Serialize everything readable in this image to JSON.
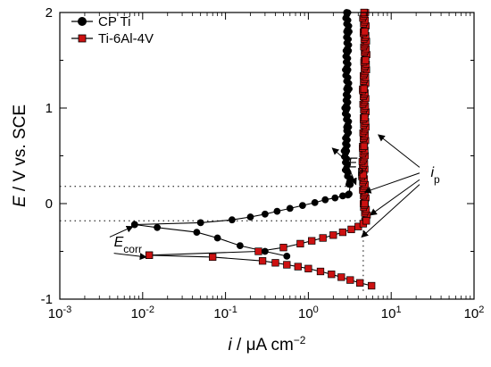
{
  "chart_data": {
    "type": "line",
    "xscale": "log",
    "xlim": [
      0.001,
      100
    ],
    "ylim": [
      -1,
      2
    ],
    "xlabel": {
      "main": "i",
      "rest": " / μA cm",
      "sup": "−2"
    },
    "ylabel": {
      "main": "E",
      "rest": " / V vs. SCE"
    },
    "x_ticks": [
      {
        "base": "10",
        "exp": "-3"
      },
      {
        "base": "10",
        "exp": "-2"
      },
      {
        "base": "10",
        "exp": "-1"
      },
      {
        "base": "10",
        "exp": "0"
      },
      {
        "base": "10",
        "exp": "1"
      },
      {
        "base": "10",
        "exp": "2"
      }
    ],
    "y_ticks": [
      "-1",
      "0",
      "1",
      "2"
    ],
    "legend_position": "top-left",
    "series": [
      {
        "name": "CP Ti",
        "marker": "circle",
        "color": "#000000",
        "fill": "#000000",
        "cathodic_x": [
          0.55,
          0.3,
          0.15,
          0.08,
          0.045,
          0.015,
          0.008
        ],
        "cathodic_y": [
          -0.55,
          -0.5,
          -0.44,
          -0.36,
          -0.3,
          -0.25,
          -0.22
        ],
        "anodic_x": [
          0.008,
          0.05,
          0.12,
          0.2,
          0.3,
          0.42,
          0.6,
          0.85,
          1.2,
          1.6,
          2.1,
          2.6,
          3.0,
          3.1,
          3.2,
          2.9,
          2.8,
          3.0,
          2.85,
          3.0,
          2.9,
          2.95,
          3.0,
          2.9
        ],
        "anodic_y": [
          -0.22,
          -0.2,
          -0.17,
          -0.14,
          -0.11,
          -0.08,
          -0.05,
          -0.02,
          0.01,
          0.04,
          0.06,
          0.08,
          0.09,
          0.1,
          0.2,
          0.35,
          0.55,
          0.8,
          1.0,
          1.2,
          1.4,
          1.6,
          1.8,
          2.0
        ]
      },
      {
        "name": "Ti-6Al-4V",
        "marker": "square",
        "color": "#000000",
        "fill": "#cc1111",
        "cathodic_x": [
          5.8,
          4.2,
          3.2,
          2.5,
          1.9,
          1.4,
          1.0,
          0.75,
          0.55,
          0.4,
          0.28,
          0.07,
          0.012
        ],
        "cathodic_y": [
          -0.86,
          -0.83,
          -0.8,
          -0.77,
          -0.74,
          -0.71,
          -0.68,
          -0.66,
          -0.64,
          -0.62,
          -0.6,
          -0.56,
          -0.54
        ],
        "anodic_x": [
          0.012,
          0.25,
          0.5,
          0.8,
          1.1,
          1.5,
          2.0,
          2.6,
          3.3,
          4.0,
          4.6,
          5.0,
          4.8,
          4.6,
          4.7,
          4.8,
          4.7,
          4.9,
          4.8,
          4.7
        ],
        "anodic_y": [
          -0.54,
          -0.5,
          -0.46,
          -0.42,
          -0.39,
          -0.36,
          -0.33,
          -0.3,
          -0.27,
          -0.24,
          -0.21,
          -0.18,
          0.0,
          0.3,
          0.6,
          0.9,
          1.2,
          1.5,
          1.8,
          2.0
        ]
      }
    ],
    "reference_lines": [
      {
        "y": 0.18,
        "x_end": 3.5
      },
      {
        "y": -0.18,
        "x_end": 4.6
      },
      {
        "x": 4.6,
        "y_from": -0.18,
        "y_to": -0.95
      }
    ],
    "annotations": [
      {
        "main": "E",
        "sub": "p",
        "text_at": [
          3.0,
          0.38
        ],
        "arrows": [
          {
            "from": [
              2.7,
              0.47
            ],
            "to": [
              1.95,
              0.58
            ]
          },
          {
            "from": [
              2.9,
              0.43
            ],
            "to": [
              3.75,
              0.2
            ]
          }
        ]
      },
      {
        "main": "i",
        "sub": "p",
        "text_at": [
          30,
          0.28
        ],
        "arrows": [
          {
            "from": [
              22,
              0.38
            ],
            "to": [
              7,
              0.72
            ]
          },
          {
            "from": [
              22,
              0.32
            ],
            "to": [
              4.8,
              0.12
            ]
          },
          {
            "from": [
              22,
              0.25
            ],
            "to": [
              5.6,
              -0.12
            ]
          },
          {
            "from": [
              22,
              0.2
            ],
            "to": [
              4.4,
              -0.35
            ]
          }
        ]
      },
      {
        "main": "E",
        "sub": "corr",
        "text_at": [
          0.0045,
          -0.45
        ],
        "arrows": [
          {
            "from": [
              0.004,
              -0.35
            ],
            "to": [
              0.0076,
              -0.24
            ]
          },
          {
            "from": [
              0.0045,
              -0.52
            ],
            "to": [
              0.011,
              -0.56
            ]
          }
        ]
      }
    ]
  }
}
